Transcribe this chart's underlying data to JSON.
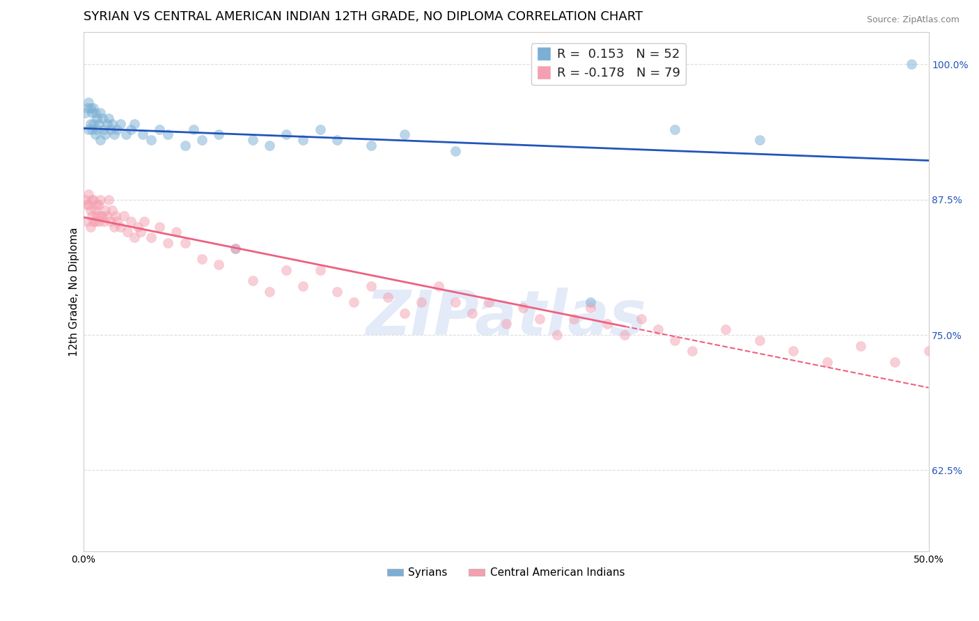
{
  "title": "SYRIAN VS CENTRAL AMERICAN INDIAN 12TH GRADE, NO DIPLOMA CORRELATION CHART",
  "source": "Source: ZipAtlas.com",
  "xlabel": "",
  "ylabel": "12th Grade, No Diploma",
  "xlim": [
    0.0,
    0.5
  ],
  "ylim": [
    0.55,
    1.03
  ],
  "xticks": [
    0.0,
    0.1,
    0.2,
    0.3,
    0.4,
    0.5
  ],
  "xticklabels": [
    "0.0%",
    "",
    "",
    "",
    "",
    "50.0%"
  ],
  "yticks": [
    0.625,
    0.75,
    0.875,
    1.0
  ],
  "yticklabels": [
    "62.5%",
    "75.0%",
    "87.5%",
    "100.0%"
  ],
  "blue_R": 0.153,
  "blue_N": 52,
  "pink_R": -0.178,
  "pink_N": 79,
  "blue_color": "#7BAFD4",
  "pink_color": "#F4A0B0",
  "blue_line_color": "#2255BB",
  "pink_line_color": "#EE6080",
  "watermark": "ZIPatlas",
  "watermark_color": "#BBCCEE",
  "legend_blue_label": "Syrians",
  "legend_pink_label": "Central American Indians",
  "blue_scatter_x": [
    0.001,
    0.002,
    0.003,
    0.003,
    0.004,
    0.004,
    0.005,
    0.005,
    0.006,
    0.006,
    0.007,
    0.007,
    0.008,
    0.008,
    0.009,
    0.01,
    0.01,
    0.011,
    0.012,
    0.013,
    0.014,
    0.015,
    0.016,
    0.017,
    0.018,
    0.02,
    0.022,
    0.025,
    0.028,
    0.03,
    0.035,
    0.04,
    0.045,
    0.05,
    0.06,
    0.065,
    0.07,
    0.08,
    0.09,
    0.1,
    0.11,
    0.12,
    0.13,
    0.14,
    0.15,
    0.17,
    0.19,
    0.22,
    0.3,
    0.35,
    0.4,
    0.49
  ],
  "blue_scatter_y": [
    0.955,
    0.96,
    0.94,
    0.965,
    0.945,
    0.96,
    0.94,
    0.955,
    0.945,
    0.96,
    0.935,
    0.955,
    0.95,
    0.94,
    0.945,
    0.955,
    0.93,
    0.95,
    0.94,
    0.935,
    0.945,
    0.95,
    0.94,
    0.945,
    0.935,
    0.94,
    0.945,
    0.935,
    0.94,
    0.945,
    0.935,
    0.93,
    0.94,
    0.935,
    0.925,
    0.94,
    0.93,
    0.935,
    0.83,
    0.93,
    0.925,
    0.935,
    0.93,
    0.94,
    0.93,
    0.925,
    0.935,
    0.92,
    0.78,
    0.94,
    0.93,
    1.0
  ],
  "pink_scatter_x": [
    0.001,
    0.002,
    0.002,
    0.003,
    0.003,
    0.004,
    0.004,
    0.005,
    0.005,
    0.006,
    0.006,
    0.007,
    0.007,
    0.008,
    0.008,
    0.009,
    0.009,
    0.01,
    0.01,
    0.011,
    0.012,
    0.013,
    0.014,
    0.015,
    0.016,
    0.017,
    0.018,
    0.019,
    0.02,
    0.022,
    0.024,
    0.026,
    0.028,
    0.03,
    0.032,
    0.034,
    0.036,
    0.04,
    0.045,
    0.05,
    0.055,
    0.06,
    0.07,
    0.08,
    0.09,
    0.1,
    0.11,
    0.12,
    0.13,
    0.14,
    0.15,
    0.16,
    0.17,
    0.18,
    0.19,
    0.2,
    0.21,
    0.22,
    0.23,
    0.24,
    0.25,
    0.26,
    0.27,
    0.28,
    0.29,
    0.3,
    0.31,
    0.32,
    0.33,
    0.34,
    0.35,
    0.36,
    0.38,
    0.4,
    0.42,
    0.44,
    0.46,
    0.48,
    0.5
  ],
  "pink_scatter_y": [
    0.875,
    0.87,
    0.855,
    0.88,
    0.87,
    0.865,
    0.85,
    0.875,
    0.86,
    0.855,
    0.875,
    0.865,
    0.855,
    0.87,
    0.86,
    0.855,
    0.87,
    0.86,
    0.875,
    0.86,
    0.855,
    0.865,
    0.86,
    0.875,
    0.855,
    0.865,
    0.85,
    0.86,
    0.855,
    0.85,
    0.86,
    0.845,
    0.855,
    0.84,
    0.85,
    0.845,
    0.855,
    0.84,
    0.85,
    0.835,
    0.845,
    0.835,
    0.82,
    0.815,
    0.83,
    0.8,
    0.79,
    0.81,
    0.795,
    0.81,
    0.79,
    0.78,
    0.795,
    0.785,
    0.77,
    0.78,
    0.795,
    0.78,
    0.77,
    0.78,
    0.76,
    0.775,
    0.765,
    0.75,
    0.765,
    0.775,
    0.76,
    0.75,
    0.765,
    0.755,
    0.745,
    0.735,
    0.755,
    0.745,
    0.735,
    0.725,
    0.74,
    0.725,
    0.735
  ],
  "background_color": "#FFFFFF",
  "grid_color": "#DDDDDD",
  "title_fontsize": 13,
  "label_fontsize": 11,
  "tick_fontsize": 10,
  "scatter_size": 100,
  "scatter_alpha": 0.5,
  "scatter_linewidth": 0.5
}
